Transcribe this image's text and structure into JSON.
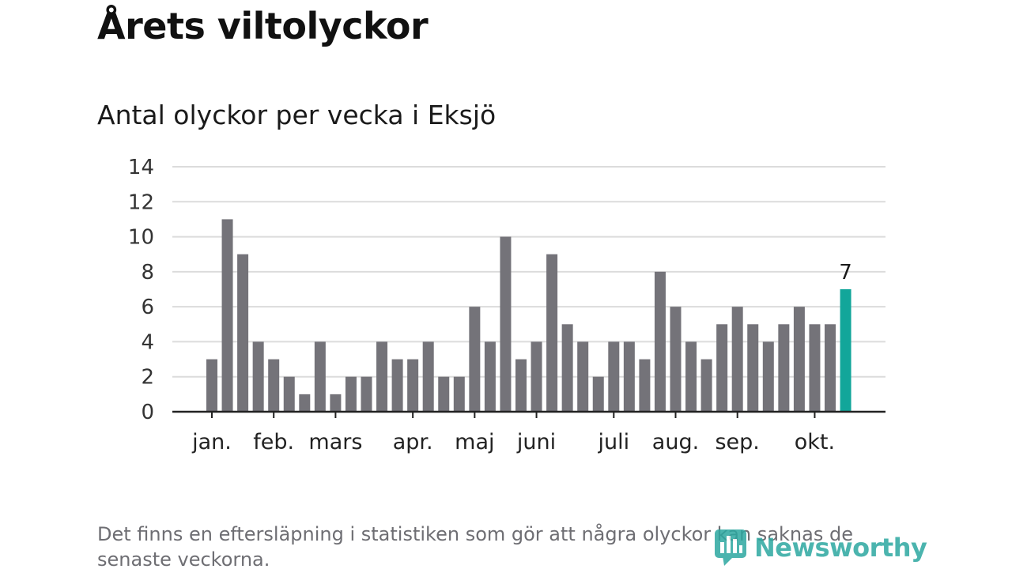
{
  "header": {
    "title": "Årets viltolyckor",
    "subtitle": "Antal olyckor per vecka i Eksjö"
  },
  "footer": {
    "note": "Det finns en eftersläpning i statistiken som gör att några olyckor kan saknas de senaste veckorna.",
    "logo_text": "Newsworthy"
  },
  "colors": {
    "bar": "#747379",
    "highlight": "#12a69a",
    "grid": "#dcdcdc",
    "axis": "#222222",
    "text": "#1a1a1a",
    "logo": "#2ca7a0"
  },
  "chart_data": {
    "type": "bar",
    "title": "Antal olyckor per vecka i Eksjö",
    "xlabel": "",
    "ylabel": "",
    "ylim": [
      0,
      14
    ],
    "yticks": [
      0,
      2,
      4,
      6,
      8,
      10,
      12,
      14
    ],
    "grid": true,
    "x_unit": "week",
    "values": [
      3,
      11,
      9,
      4,
      3,
      2,
      1,
      4,
      1,
      2,
      2,
      4,
      3,
      3,
      4,
      2,
      2,
      6,
      4,
      10,
      3,
      4,
      9,
      5,
      4,
      2,
      4,
      4,
      3,
      8,
      6,
      4,
      3,
      5,
      6,
      5,
      4,
      5,
      6,
      5,
      5,
      7
    ],
    "month_labels": [
      {
        "label": "jan.",
        "week": 1
      },
      {
        "label": "feb.",
        "week": 5
      },
      {
        "label": "mars",
        "week": 9
      },
      {
        "label": "apr.",
        "week": 14
      },
      {
        "label": "maj",
        "week": 18
      },
      {
        "label": "juni",
        "week": 22
      },
      {
        "label": "juli",
        "week": 27
      },
      {
        "label": "aug.",
        "week": 31
      },
      {
        "label": "sep.",
        "week": 35
      },
      {
        "label": "okt.",
        "week": 40
      }
    ],
    "highlight_index": 41,
    "highlight_label": "7"
  }
}
